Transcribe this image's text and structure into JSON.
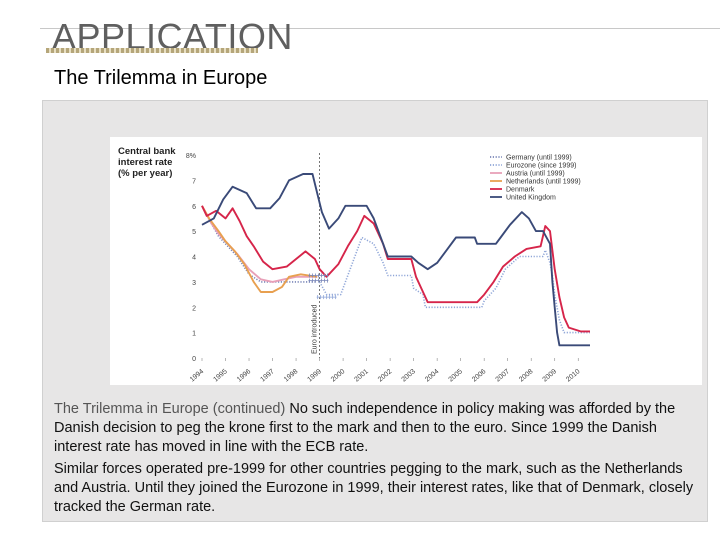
{
  "slide": {
    "title": "APPLICATION",
    "subtitle": "The Trilemma in Europe",
    "caption_lead": "The Trilemma in Europe (continued)",
    "caption_1": "No such independence in policy making was afforded by the Danish decision to peg the krone first to the mark and then to the euro. Since 1999 the Danish interest rate has moved in line with the ECB rate.",
    "caption_2": "Similar forces operated pre-1999 for other countries pegging to the mark, such as the Netherlands and Austria. Until they joined the Eurozone in 1999, their interest rates, like that of Denmark, closely tracked the German rate."
  },
  "colors": {
    "germany": "#7986b8",
    "eurozone": "#8fa6d8",
    "austria": "#e8a0b8",
    "netherlands": "#e8a050",
    "denmark": "#d6254a",
    "uk": "#3a4a78",
    "marker": "#222222"
  },
  "chart_data": {
    "type": "line",
    "ylabel": "Central bank interest rate (% per year)",
    "ytick_labels": [
      "0",
      "1",
      "2",
      "3",
      "4",
      "5",
      "6",
      "7",
      "8%"
    ],
    "ylim": [
      0,
      8
    ],
    "xlim": [
      1994,
      2010.5
    ],
    "xtick_labels": [
      "1994",
      "1995",
      "1996",
      "1997",
      "1998",
      "1999",
      "2000",
      "2001",
      "2002",
      "2003",
      "2004",
      "2005",
      "2006",
      "2007",
      "2008",
      "2009",
      "2010"
    ],
    "annotation": {
      "label": "Euro introduced",
      "x": 1999
    },
    "legend_position": "top-right",
    "series": [
      {
        "name": "Germany (until 1999)",
        "key": "germany",
        "dash": "dots",
        "points": [
          [
            1994,
            6
          ],
          [
            1994.4,
            5.3
          ],
          [
            1994.7,
            4.8
          ],
          [
            1995,
            4.5
          ],
          [
            1995.5,
            4
          ],
          [
            1996,
            3.3
          ],
          [
            1996.5,
            3
          ],
          [
            1997,
            3
          ],
          [
            1997.5,
            3
          ],
          [
            1998,
            3
          ],
          [
            1998.9,
            3
          ]
        ]
      },
      {
        "name": "Eurozone (since 1999)",
        "key": "eurozone",
        "dash": "dots",
        "points": [
          [
            1999,
            3
          ],
          [
            1999.3,
            2.5
          ],
          [
            1999.9,
            2.5
          ],
          [
            2000.1,
            3
          ],
          [
            2000.4,
            3.75
          ],
          [
            2000.8,
            4.75
          ],
          [
            2001.3,
            4.5
          ],
          [
            2001.7,
            3.75
          ],
          [
            2001.9,
            3.25
          ],
          [
            2002,
            3.25
          ],
          [
            2002.9,
            3.25
          ],
          [
            2003,
            2.75
          ],
          [
            2003.4,
            2.5
          ],
          [
            2003.5,
            2
          ],
          [
            2005.9,
            2
          ],
          [
            2006,
            2.25
          ],
          [
            2006.5,
            2.75
          ],
          [
            2006.9,
            3.5
          ],
          [
            2007.5,
            4
          ],
          [
            2008.5,
            4
          ],
          [
            2008.6,
            4.25
          ],
          [
            2008.8,
            3.75
          ],
          [
            2008.9,
            3.25
          ],
          [
            2009,
            2.5
          ],
          [
            2009.2,
            1.5
          ],
          [
            2009.4,
            1
          ],
          [
            2010.5,
            1
          ]
        ]
      },
      {
        "name": "Austria (until 1999)",
        "key": "austria",
        "dash": "solid",
        "points": [
          [
            1994,
            6
          ],
          [
            1994.4,
            5.3
          ],
          [
            1994.7,
            4.9
          ],
          [
            1995,
            4.6
          ],
          [
            1995.5,
            4.1
          ],
          [
            1996,
            3.5
          ],
          [
            1996.5,
            3.1
          ],
          [
            1997,
            3
          ],
          [
            1997.5,
            3.1
          ],
          [
            1998,
            3.2
          ],
          [
            1998.9,
            3.2
          ]
        ]
      },
      {
        "name": "Netherlands (until 1999)",
        "key": "netherlands",
        "dash": "solid",
        "points": [
          [
            1994,
            6
          ],
          [
            1994.3,
            5.5
          ],
          [
            1994.7,
            5
          ],
          [
            1995,
            4.6
          ],
          [
            1995.4,
            4.2
          ],
          [
            1995.8,
            3.7
          ],
          [
            1996.2,
            3
          ],
          [
            1996.5,
            2.6
          ],
          [
            1997,
            2.6
          ],
          [
            1997.4,
            2.8
          ],
          [
            1997.7,
            3.2
          ],
          [
            1998.2,
            3.3
          ],
          [
            1998.9,
            3.2
          ]
        ]
      },
      {
        "name": "Denmark",
        "key": "denmark",
        "dash": "solid",
        "points": [
          [
            1994,
            6
          ],
          [
            1994.2,
            5.6
          ],
          [
            1994.6,
            5.8
          ],
          [
            1995,
            5.5
          ],
          [
            1995.3,
            5.9
          ],
          [
            1995.6,
            5.4
          ],
          [
            1995.9,
            4.8
          ],
          [
            1996.2,
            4.4
          ],
          [
            1996.6,
            3.8
          ],
          [
            1997,
            3.5
          ],
          [
            1997.6,
            3.6
          ],
          [
            1998,
            3.9
          ],
          [
            1998.4,
            4.2
          ],
          [
            1998.8,
            3.9
          ],
          [
            1999,
            3.5
          ],
          [
            1999.3,
            3.2
          ],
          [
            1999.8,
            3.7
          ],
          [
            2000.2,
            4.4
          ],
          [
            2000.6,
            5
          ],
          [
            2000.9,
            5.6
          ],
          [
            2001.3,
            5.3
          ],
          [
            2001.7,
            4.5
          ],
          [
            2001.9,
            3.9
          ],
          [
            2002.9,
            3.9
          ],
          [
            2003.1,
            3.2
          ],
          [
            2003.4,
            2.6
          ],
          [
            2003.6,
            2.2
          ],
          [
            2005.7,
            2.2
          ],
          [
            2006,
            2.5
          ],
          [
            2006.4,
            3
          ],
          [
            2006.8,
            3.6
          ],
          [
            2007.3,
            4
          ],
          [
            2007.8,
            4.3
          ],
          [
            2008.4,
            4.4
          ],
          [
            2008.6,
            5.2
          ],
          [
            2008.8,
            5
          ],
          [
            2009,
            3.5
          ],
          [
            2009.2,
            2.4
          ],
          [
            2009.4,
            1.6
          ],
          [
            2009.6,
            1.2
          ],
          [
            2010.1,
            1.05
          ],
          [
            2010.5,
            1.05
          ]
        ]
      },
      {
        "name": "United Kingdom",
        "key": "uk",
        "dash": "solid",
        "points": [
          [
            1994,
            5.25
          ],
          [
            1994.5,
            5.5
          ],
          [
            1994.9,
            6.25
          ],
          [
            1995.3,
            6.75
          ],
          [
            1995.9,
            6.5
          ],
          [
            1996.3,
            5.9
          ],
          [
            1996.9,
            5.9
          ],
          [
            1997.3,
            6.3
          ],
          [
            1997.7,
            7
          ],
          [
            1998.3,
            7.25
          ],
          [
            1998.7,
            7.25
          ],
          [
            1998.9,
            6.5
          ],
          [
            1999.1,
            5.75
          ],
          [
            1999.4,
            5.1
          ],
          [
            1999.8,
            5.5
          ],
          [
            2000.1,
            6
          ],
          [
            2000.5,
            6
          ],
          [
            2001,
            6
          ],
          [
            2001.3,
            5.5
          ],
          [
            2001.7,
            4.5
          ],
          [
            2001.9,
            4
          ],
          [
            2002.9,
            4
          ],
          [
            2003.2,
            3.75
          ],
          [
            2003.6,
            3.5
          ],
          [
            2004,
            3.75
          ],
          [
            2004.4,
            4.25
          ],
          [
            2004.8,
            4.75
          ],
          [
            2005.6,
            4.75
          ],
          [
            2005.7,
            4.5
          ],
          [
            2006.5,
            4.5
          ],
          [
            2006.7,
            4.75
          ],
          [
            2007.1,
            5.25
          ],
          [
            2007.6,
            5.75
          ],
          [
            2007.9,
            5.5
          ],
          [
            2008.2,
            5
          ],
          [
            2008.5,
            5
          ],
          [
            2008.8,
            4.5
          ],
          [
            2008.9,
            3
          ],
          [
            2009,
            2
          ],
          [
            2009.1,
            1
          ],
          [
            2009.2,
            0.5
          ],
          [
            2010.5,
            0.5
          ]
        ]
      }
    ],
    "markers": [
      {
        "key": "germany",
        "points": [
          [
            1998.95,
            3.25
          ],
          [
            1998.95,
            3.05
          ]
        ]
      },
      {
        "key": "eurozone",
        "points": [
          [
            1999.3,
            2.4
          ]
        ]
      }
    ]
  }
}
